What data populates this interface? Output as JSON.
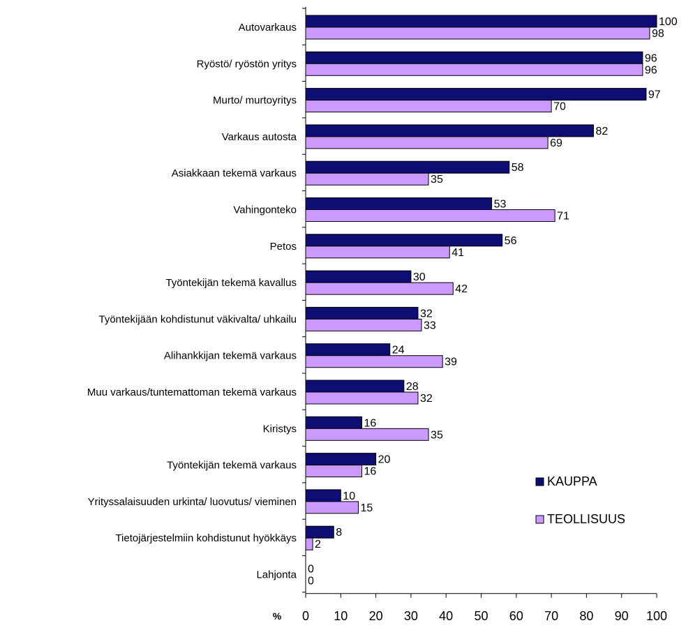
{
  "chart_data": {
    "type": "bar",
    "orientation": "horizontal",
    "categories": [
      "Autovarkaus",
      "Ryöstö/ ryöstön yritys",
      "Murto/ murtoyritys",
      "Varkaus autosta",
      "Asiakkaan tekemä varkaus",
      "Vahingonteko",
      "Petos",
      "Työntekijän tekemä kavallus",
      "Työntekijään kohdistunut väkivalta/ uhkailu",
      "Alihankkijan tekemä varkaus",
      "Muu varkaus/tuntemattoman tekemä varkaus",
      "Kiristys",
      "Työntekijän tekemä varkaus",
      "Yrityssalaisuuden urkinta/ luovutus/ vieminen",
      "Tietojärjestelmiin kohdistunut hyökkäys",
      "Lahjonta"
    ],
    "series": [
      {
        "name": "KAUPPA",
        "color": "#0d0d73",
        "values": [
          100,
          96,
          97,
          82,
          58,
          53,
          56,
          30,
          32,
          24,
          28,
          16,
          20,
          10,
          8,
          0
        ]
      },
      {
        "name": "TEOLLISUUS",
        "color": "#cc99ff",
        "values": [
          98,
          96,
          70,
          69,
          35,
          71,
          41,
          42,
          33,
          39,
          32,
          35,
          16,
          15,
          2,
          0
        ]
      }
    ],
    "xlim": [
      0,
      100
    ],
    "xticks": [
      "0",
      "10",
      "20",
      "30",
      "40",
      "50",
      "60",
      "70",
      "80",
      "90",
      "100"
    ],
    "xlabel": "%",
    "legend_position": "bottom-right",
    "grid": false
  }
}
